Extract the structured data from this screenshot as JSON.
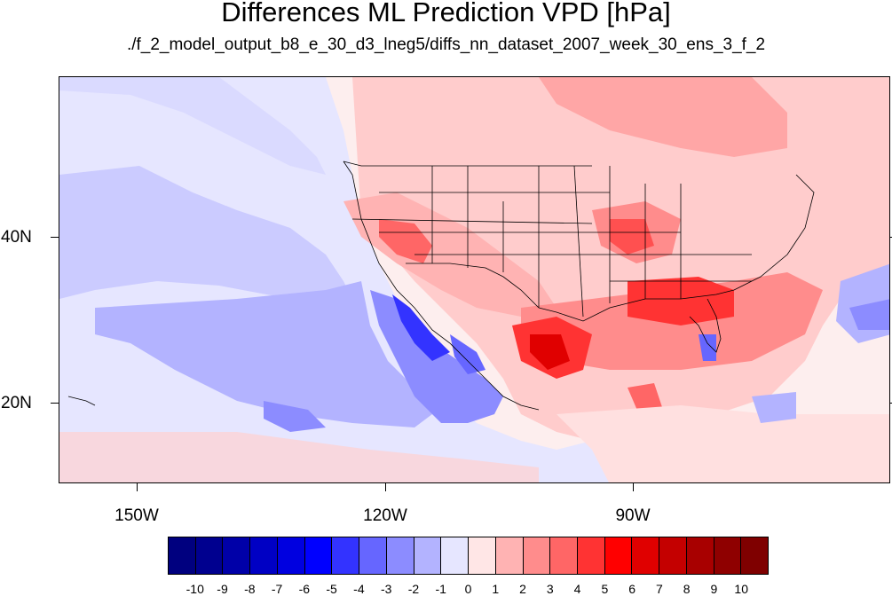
{
  "title": "Differences ML Prediction VPD [hPa]",
  "subtitle": "./f_2_model_output_b8_e_30_d3_lneg5/diffs_nn_dataset_2007_week_30_ens_3_f_2",
  "lat_labels": [
    "40N",
    "20N"
  ],
  "lon_labels": [
    "150W",
    "120W",
    "90W"
  ],
  "colorbar": {
    "labels": [
      "-10",
      "-9",
      "-8",
      "-7",
      "-6",
      "-5",
      "-4",
      "-3",
      "-2",
      "-1",
      "0",
      "1",
      "2",
      "3",
      "4",
      "5",
      "6",
      "7",
      "8",
      "9",
      "10"
    ],
    "colors": [
      "#00007f",
      "#00008f",
      "#0000a8",
      "#0000c4",
      "#0000e0",
      "#0000ff",
      "#3333ff",
      "#6666ff",
      "#8c8cff",
      "#b3b3ff",
      "#e6e6ff",
      "#ffe6e6",
      "#ffb3b3",
      "#ff8c8c",
      "#ff6666",
      "#ff3333",
      "#ff0000",
      "#e00000",
      "#c40000",
      "#a80000",
      "#8f0000",
      "#7f0000"
    ]
  }
}
